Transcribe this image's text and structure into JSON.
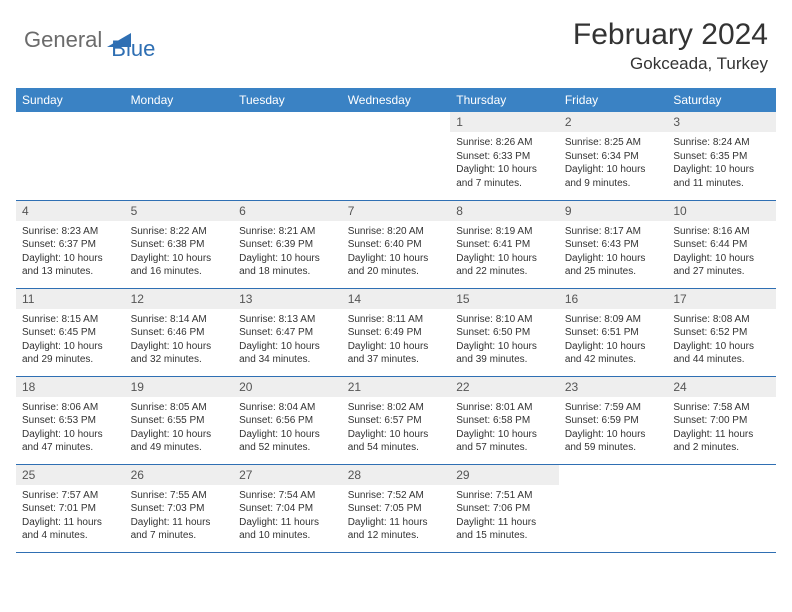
{
  "logo": {
    "general": "General",
    "blue": "Blue"
  },
  "title": "February 2024",
  "location": "Gokceada, Turkey",
  "colors": {
    "header_bg": "#3a82c4",
    "border": "#2f6fb3",
    "daynum_bg": "#eeeeee",
    "text": "#333333",
    "logo_gray": "#6b6b6b",
    "logo_blue": "#2f6fb3"
  },
  "day_headers": [
    "Sunday",
    "Monday",
    "Tuesday",
    "Wednesday",
    "Thursday",
    "Friday",
    "Saturday"
  ],
  "weeks": [
    [
      {
        "n": "",
        "sr": "",
        "ss": "",
        "dl": ""
      },
      {
        "n": "",
        "sr": "",
        "ss": "",
        "dl": ""
      },
      {
        "n": "",
        "sr": "",
        "ss": "",
        "dl": ""
      },
      {
        "n": "",
        "sr": "",
        "ss": "",
        "dl": ""
      },
      {
        "n": "1",
        "sr": "Sunrise: 8:26 AM",
        "ss": "Sunset: 6:33 PM",
        "dl": "Daylight: 10 hours and 7 minutes."
      },
      {
        "n": "2",
        "sr": "Sunrise: 8:25 AM",
        "ss": "Sunset: 6:34 PM",
        "dl": "Daylight: 10 hours and 9 minutes."
      },
      {
        "n": "3",
        "sr": "Sunrise: 8:24 AM",
        "ss": "Sunset: 6:35 PM",
        "dl": "Daylight: 10 hours and 11 minutes."
      }
    ],
    [
      {
        "n": "4",
        "sr": "Sunrise: 8:23 AM",
        "ss": "Sunset: 6:37 PM",
        "dl": "Daylight: 10 hours and 13 minutes."
      },
      {
        "n": "5",
        "sr": "Sunrise: 8:22 AM",
        "ss": "Sunset: 6:38 PM",
        "dl": "Daylight: 10 hours and 16 minutes."
      },
      {
        "n": "6",
        "sr": "Sunrise: 8:21 AM",
        "ss": "Sunset: 6:39 PM",
        "dl": "Daylight: 10 hours and 18 minutes."
      },
      {
        "n": "7",
        "sr": "Sunrise: 8:20 AM",
        "ss": "Sunset: 6:40 PM",
        "dl": "Daylight: 10 hours and 20 minutes."
      },
      {
        "n": "8",
        "sr": "Sunrise: 8:19 AM",
        "ss": "Sunset: 6:41 PM",
        "dl": "Daylight: 10 hours and 22 minutes."
      },
      {
        "n": "9",
        "sr": "Sunrise: 8:17 AM",
        "ss": "Sunset: 6:43 PM",
        "dl": "Daylight: 10 hours and 25 minutes."
      },
      {
        "n": "10",
        "sr": "Sunrise: 8:16 AM",
        "ss": "Sunset: 6:44 PM",
        "dl": "Daylight: 10 hours and 27 minutes."
      }
    ],
    [
      {
        "n": "11",
        "sr": "Sunrise: 8:15 AM",
        "ss": "Sunset: 6:45 PM",
        "dl": "Daylight: 10 hours and 29 minutes."
      },
      {
        "n": "12",
        "sr": "Sunrise: 8:14 AM",
        "ss": "Sunset: 6:46 PM",
        "dl": "Daylight: 10 hours and 32 minutes."
      },
      {
        "n": "13",
        "sr": "Sunrise: 8:13 AM",
        "ss": "Sunset: 6:47 PM",
        "dl": "Daylight: 10 hours and 34 minutes."
      },
      {
        "n": "14",
        "sr": "Sunrise: 8:11 AM",
        "ss": "Sunset: 6:49 PM",
        "dl": "Daylight: 10 hours and 37 minutes."
      },
      {
        "n": "15",
        "sr": "Sunrise: 8:10 AM",
        "ss": "Sunset: 6:50 PM",
        "dl": "Daylight: 10 hours and 39 minutes."
      },
      {
        "n": "16",
        "sr": "Sunrise: 8:09 AM",
        "ss": "Sunset: 6:51 PM",
        "dl": "Daylight: 10 hours and 42 minutes."
      },
      {
        "n": "17",
        "sr": "Sunrise: 8:08 AM",
        "ss": "Sunset: 6:52 PM",
        "dl": "Daylight: 10 hours and 44 minutes."
      }
    ],
    [
      {
        "n": "18",
        "sr": "Sunrise: 8:06 AM",
        "ss": "Sunset: 6:53 PM",
        "dl": "Daylight: 10 hours and 47 minutes."
      },
      {
        "n": "19",
        "sr": "Sunrise: 8:05 AM",
        "ss": "Sunset: 6:55 PM",
        "dl": "Daylight: 10 hours and 49 minutes."
      },
      {
        "n": "20",
        "sr": "Sunrise: 8:04 AM",
        "ss": "Sunset: 6:56 PM",
        "dl": "Daylight: 10 hours and 52 minutes."
      },
      {
        "n": "21",
        "sr": "Sunrise: 8:02 AM",
        "ss": "Sunset: 6:57 PM",
        "dl": "Daylight: 10 hours and 54 minutes."
      },
      {
        "n": "22",
        "sr": "Sunrise: 8:01 AM",
        "ss": "Sunset: 6:58 PM",
        "dl": "Daylight: 10 hours and 57 minutes."
      },
      {
        "n": "23",
        "sr": "Sunrise: 7:59 AM",
        "ss": "Sunset: 6:59 PM",
        "dl": "Daylight: 10 hours and 59 minutes."
      },
      {
        "n": "24",
        "sr": "Sunrise: 7:58 AM",
        "ss": "Sunset: 7:00 PM",
        "dl": "Daylight: 11 hours and 2 minutes."
      }
    ],
    [
      {
        "n": "25",
        "sr": "Sunrise: 7:57 AM",
        "ss": "Sunset: 7:01 PM",
        "dl": "Daylight: 11 hours and 4 minutes."
      },
      {
        "n": "26",
        "sr": "Sunrise: 7:55 AM",
        "ss": "Sunset: 7:03 PM",
        "dl": "Daylight: 11 hours and 7 minutes."
      },
      {
        "n": "27",
        "sr": "Sunrise: 7:54 AM",
        "ss": "Sunset: 7:04 PM",
        "dl": "Daylight: 11 hours and 10 minutes."
      },
      {
        "n": "28",
        "sr": "Sunrise: 7:52 AM",
        "ss": "Sunset: 7:05 PM",
        "dl": "Daylight: 11 hours and 12 minutes."
      },
      {
        "n": "29",
        "sr": "Sunrise: 7:51 AM",
        "ss": "Sunset: 7:06 PM",
        "dl": "Daylight: 11 hours and 15 minutes."
      },
      {
        "n": "",
        "sr": "",
        "ss": "",
        "dl": ""
      },
      {
        "n": "",
        "sr": "",
        "ss": "",
        "dl": ""
      }
    ]
  ]
}
